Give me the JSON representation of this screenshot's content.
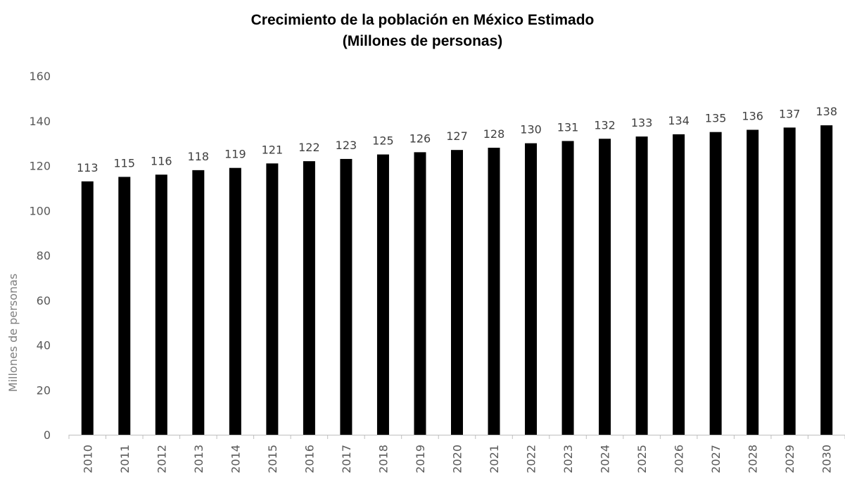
{
  "chart_data": {
    "type": "bar",
    "title": "Crecimiento de la población en México Estimado",
    "subtitle": "(Millones de personas)",
    "xlabel": "",
    "ylabel": "Millones de personas",
    "ylim": [
      0,
      160
    ],
    "yticks": [
      0,
      20,
      40,
      60,
      80,
      100,
      120,
      140,
      160
    ],
    "grid": false,
    "legend": "none",
    "bar_color": "#000000",
    "categories": [
      "2010",
      "2011",
      "2012",
      "2013",
      "2014",
      "2015",
      "2016",
      "2017",
      "2018",
      "2019",
      "2020",
      "2021",
      "2022",
      "2023",
      "2024",
      "2025",
      "2026",
      "2027",
      "2028",
      "2029",
      "2030"
    ],
    "values": [
      113,
      115,
      116,
      118,
      119,
      121,
      122,
      123,
      125,
      126,
      127,
      128,
      130,
      131,
      132,
      133,
      134,
      135,
      136,
      137,
      138
    ],
    "data_labels": [
      "113",
      "115",
      "116",
      "118",
      "119",
      "121",
      "122",
      "123",
      "125",
      "126",
      "127",
      "128",
      "130",
      "131",
      "132",
      "133",
      "134",
      "135",
      "136",
      "137",
      "138"
    ]
  }
}
